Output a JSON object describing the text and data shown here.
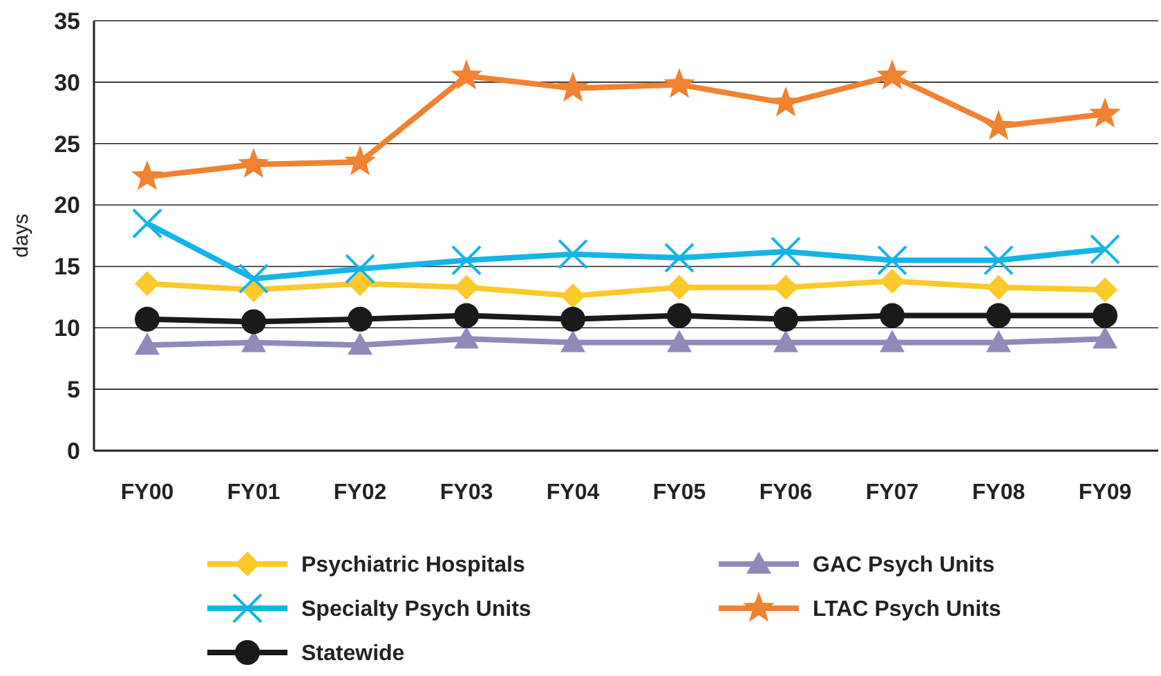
{
  "chart_data": {
    "type": "line",
    "ylabel": "days",
    "categories": [
      "FY00",
      "FY01",
      "FY02",
      "FY03",
      "FY04",
      "FY05",
      "FY06",
      "FY07",
      "FY08",
      "FY09"
    ],
    "ylim": [
      0,
      35
    ],
    "yticks": [
      0,
      5,
      10,
      15,
      20,
      25,
      30,
      35
    ],
    "grid": "y",
    "legend": "bottom",
    "series": [
      {
        "name": "Psychiatric Hospitals",
        "color": "#fcc92b",
        "marker": "diamond",
        "values": [
          13.6,
          13.1,
          13.6,
          13.3,
          12.6,
          13.3,
          13.3,
          13.8,
          13.3,
          13.1
        ]
      },
      {
        "name": "GAC Psych Units",
        "color": "#8e8bbb",
        "marker": "triangle",
        "values": [
          8.6,
          8.8,
          8.6,
          9.1,
          8.8,
          8.8,
          8.8,
          8.8,
          8.8,
          9.1
        ]
      },
      {
        "name": "Specialty Psych Units",
        "color": "#14b4e8",
        "marker": "cross",
        "values": [
          18.5,
          14.0,
          14.8,
          15.5,
          16.0,
          15.7,
          16.2,
          15.5,
          15.5,
          16.4
        ]
      },
      {
        "name": "LTAC Psych Units",
        "color": "#f08232",
        "marker": "star",
        "values": [
          22.3,
          23.3,
          23.5,
          30.5,
          29.5,
          29.8,
          28.3,
          30.5,
          26.4,
          27.4
        ]
      },
      {
        "name": "Statewide",
        "color": "#1a1a1a",
        "marker": "circle",
        "values": [
          10.7,
          10.5,
          10.7,
          11.0,
          10.7,
          11.0,
          10.7,
          11.0,
          11.0,
          11.0
        ]
      }
    ]
  }
}
